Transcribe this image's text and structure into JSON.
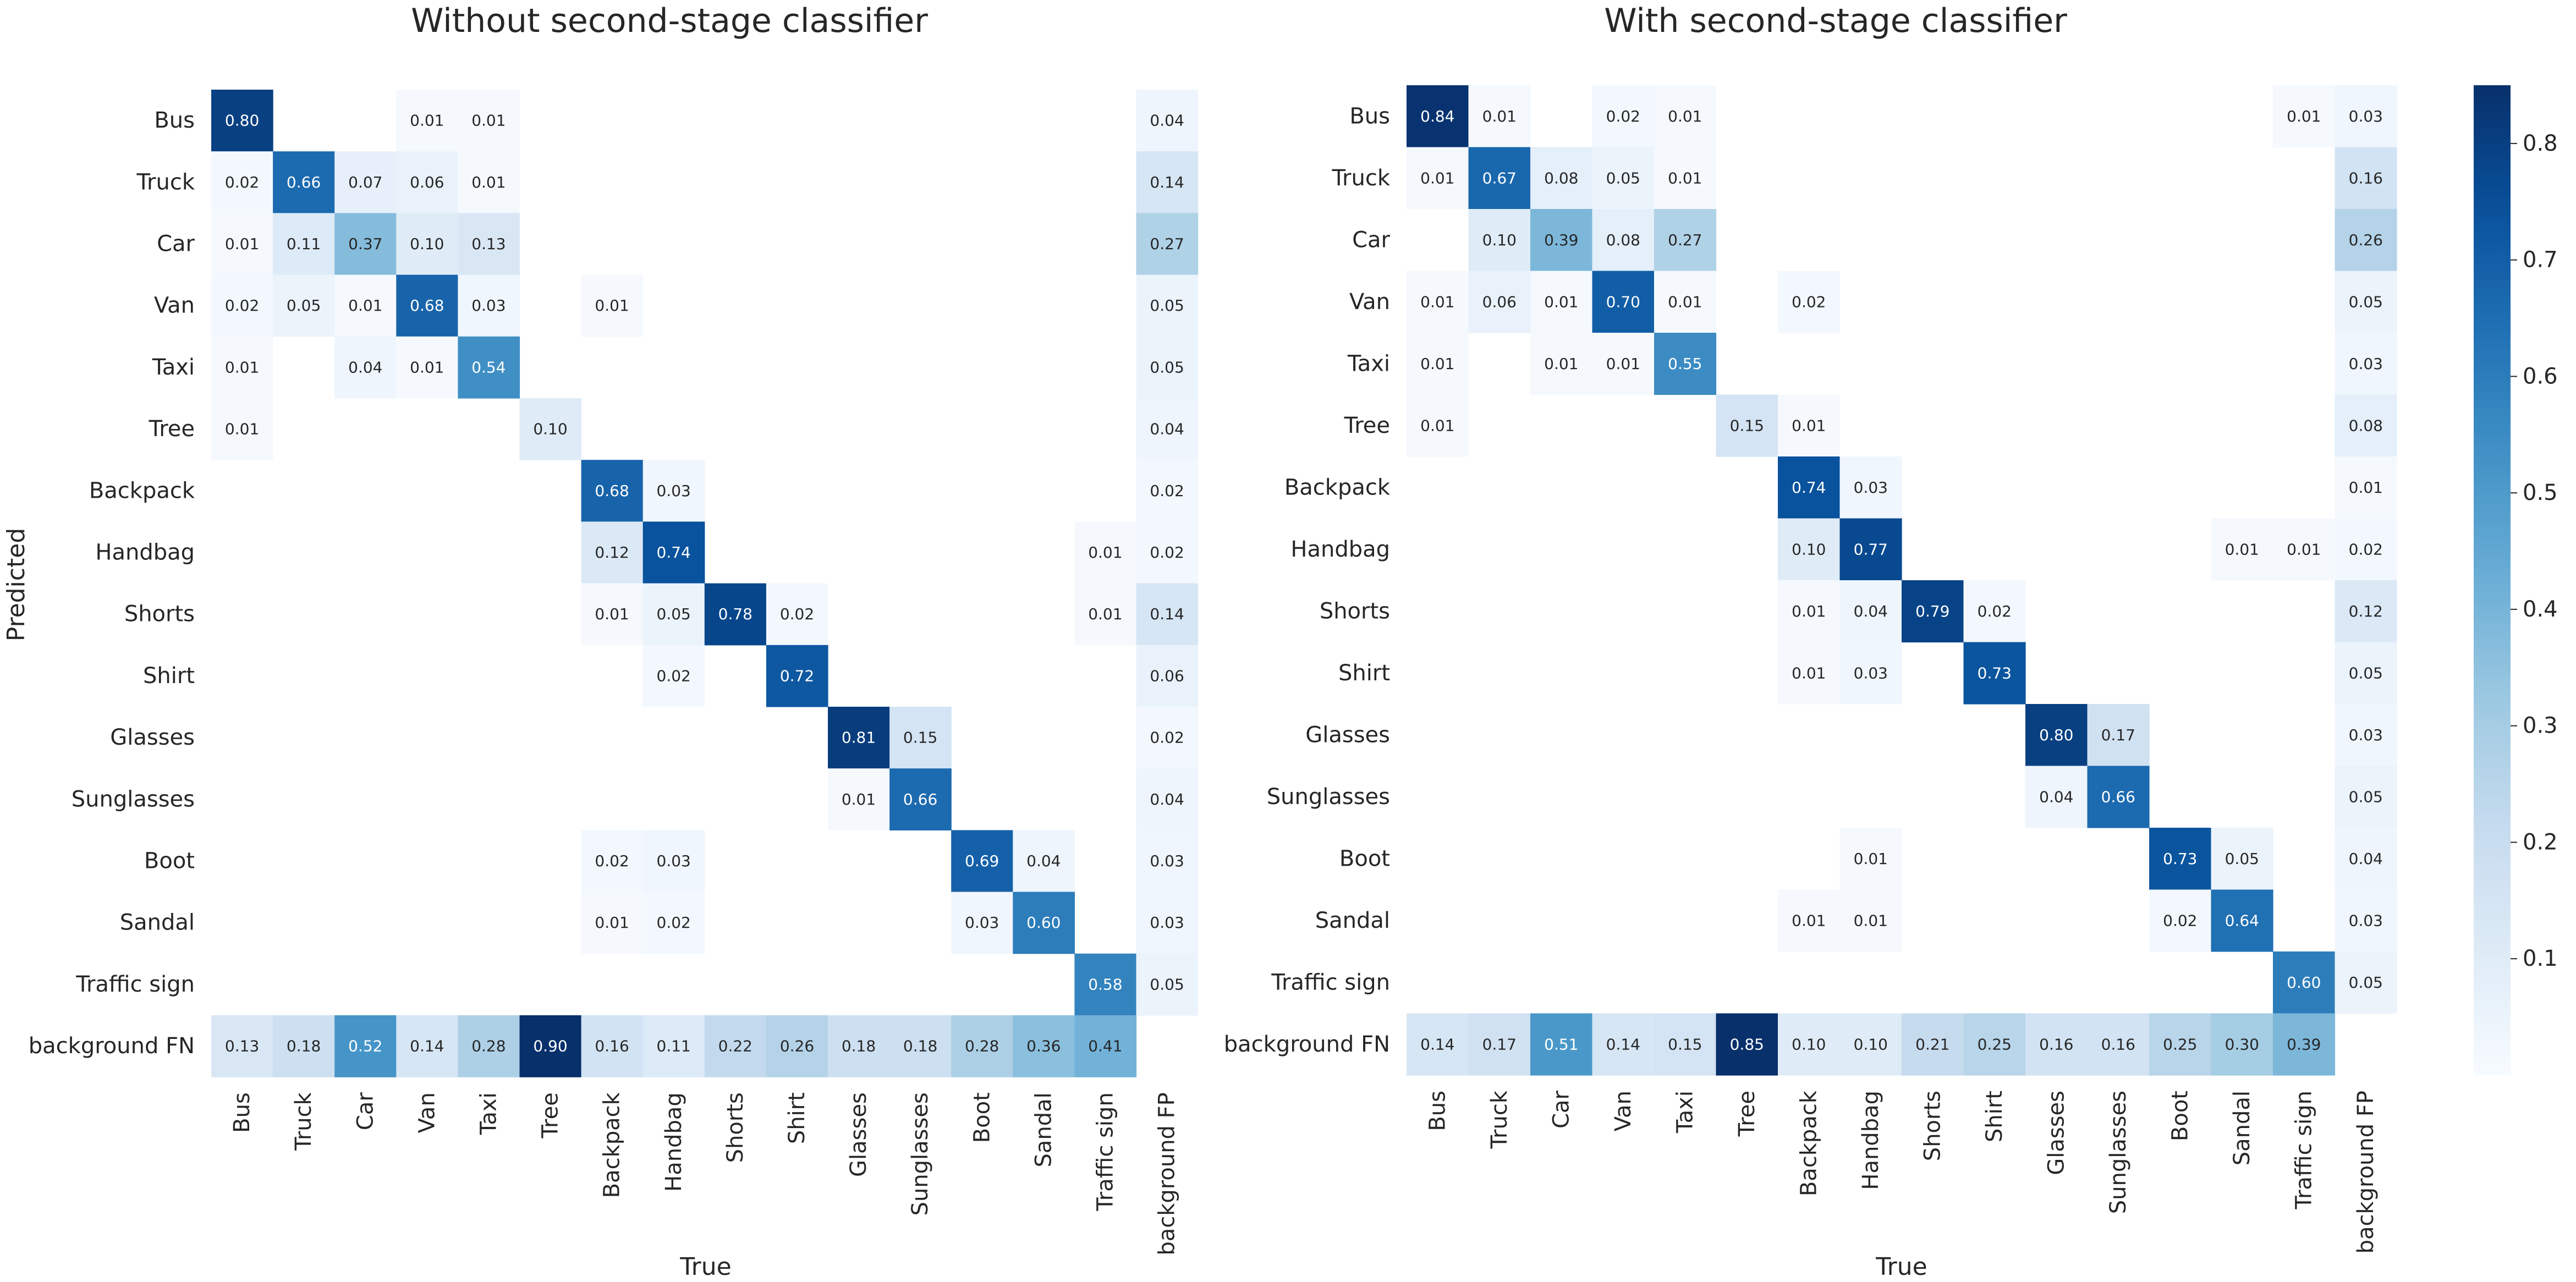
{
  "chart_data": [
    {
      "type": "heatmap",
      "title": "Without second-stage classifier",
      "xlabel": "True",
      "ylabel": "Predicted",
      "x_categories": [
        "Bus",
        "Truck",
        "Car",
        "Van",
        "Taxi",
        "Tree",
        "Backpack",
        "Handbag",
        "Shorts",
        "Shirt",
        "Glasses",
        "Sunglasses",
        "Boot",
        "Sandal",
        "Traffic sign",
        "background FP"
      ],
      "y_categories": [
        "Bus",
        "Truck",
        "Car",
        "Van",
        "Taxi",
        "Tree",
        "Backpack",
        "Handbag",
        "Shorts",
        "Shirt",
        "Glasses",
        "Sunglasses",
        "Boot",
        "Sandal",
        "Traffic sign",
        "background FN"
      ],
      "values": [
        [
          0.8,
          null,
          null,
          0.01,
          0.01,
          null,
          null,
          null,
          null,
          null,
          null,
          null,
          null,
          null,
          null,
          0.04
        ],
        [
          0.02,
          0.66,
          0.07,
          0.06,
          0.01,
          null,
          null,
          null,
          null,
          null,
          null,
          null,
          null,
          null,
          null,
          0.14
        ],
        [
          0.01,
          0.11,
          0.37,
          0.1,
          0.13,
          null,
          null,
          null,
          null,
          null,
          null,
          null,
          null,
          null,
          null,
          0.27
        ],
        [
          0.02,
          0.05,
          0.01,
          0.68,
          0.03,
          null,
          0.01,
          null,
          null,
          null,
          null,
          null,
          null,
          null,
          null,
          0.05
        ],
        [
          0.01,
          null,
          0.04,
          0.01,
          0.54,
          null,
          null,
          null,
          null,
          null,
          null,
          null,
          null,
          null,
          null,
          0.05
        ],
        [
          0.01,
          null,
          null,
          null,
          null,
          0.1,
          null,
          null,
          null,
          null,
          null,
          null,
          null,
          null,
          null,
          0.04
        ],
        [
          null,
          null,
          null,
          null,
          null,
          null,
          0.68,
          0.03,
          null,
          null,
          null,
          null,
          null,
          null,
          null,
          0.02
        ],
        [
          null,
          null,
          null,
          null,
          null,
          null,
          0.12,
          0.74,
          null,
          null,
          null,
          null,
          null,
          null,
          0.01,
          0.02
        ],
        [
          null,
          null,
          null,
          null,
          null,
          null,
          0.01,
          0.05,
          0.78,
          0.02,
          null,
          null,
          null,
          null,
          0.01,
          0.14
        ],
        [
          null,
          null,
          null,
          null,
          null,
          null,
          null,
          0.02,
          null,
          0.72,
          null,
          null,
          null,
          null,
          null,
          0.06
        ],
        [
          null,
          null,
          null,
          null,
          null,
          null,
          null,
          null,
          null,
          null,
          0.81,
          0.15,
          null,
          null,
          null,
          0.02
        ],
        [
          null,
          null,
          null,
          null,
          null,
          null,
          null,
          null,
          null,
          null,
          0.01,
          0.66,
          null,
          null,
          null,
          0.04
        ],
        [
          null,
          null,
          null,
          null,
          null,
          null,
          0.02,
          0.03,
          null,
          null,
          null,
          null,
          0.69,
          0.04,
          null,
          0.03
        ],
        [
          null,
          null,
          null,
          null,
          null,
          null,
          0.01,
          0.02,
          null,
          null,
          null,
          null,
          0.03,
          0.6,
          null,
          0.03
        ],
        [
          null,
          null,
          null,
          null,
          null,
          null,
          null,
          null,
          null,
          null,
          null,
          null,
          null,
          null,
          0.58,
          0.05
        ],
        [
          0.13,
          0.18,
          0.52,
          0.14,
          0.28,
          0.9,
          0.16,
          0.11,
          0.22,
          0.26,
          0.18,
          0.18,
          0.28,
          0.36,
          0.41,
          null
        ]
      ]
    },
    {
      "type": "heatmap",
      "title": "With second-stage classifier",
      "xlabel": "True",
      "ylabel": "",
      "x_categories": [
        "Bus",
        "Truck",
        "Car",
        "Van",
        "Taxi",
        "Tree",
        "Backpack",
        "Handbag",
        "Shorts",
        "Shirt",
        "Glasses",
        "Sunglasses",
        "Boot",
        "Sandal",
        "Traffic sign",
        "background FP"
      ],
      "y_categories": [
        "Bus",
        "Truck",
        "Car",
        "Van",
        "Taxi",
        "Tree",
        "Backpack",
        "Handbag",
        "Shorts",
        "Shirt",
        "Glasses",
        "Sunglasses",
        "Boot",
        "Sandal",
        "Traffic sign",
        "background FN"
      ],
      "values": [
        [
          0.84,
          0.01,
          null,
          0.02,
          0.01,
          null,
          null,
          null,
          null,
          null,
          null,
          null,
          null,
          null,
          0.01,
          0.03
        ],
        [
          0.01,
          0.67,
          0.08,
          0.05,
          0.01,
          null,
          null,
          null,
          null,
          null,
          null,
          null,
          null,
          null,
          null,
          0.16
        ],
        [
          null,
          0.1,
          0.39,
          0.08,
          0.27,
          null,
          null,
          null,
          null,
          null,
          null,
          null,
          null,
          null,
          null,
          0.26
        ],
        [
          0.01,
          0.06,
          0.01,
          0.7,
          0.01,
          null,
          0.02,
          null,
          null,
          null,
          null,
          null,
          null,
          null,
          null,
          0.05
        ],
        [
          0.01,
          null,
          0.01,
          0.01,
          0.55,
          null,
          null,
          null,
          null,
          null,
          null,
          null,
          null,
          null,
          null,
          0.03
        ],
        [
          0.01,
          null,
          null,
          null,
          null,
          0.15,
          0.01,
          null,
          null,
          null,
          null,
          null,
          null,
          null,
          null,
          0.08
        ],
        [
          null,
          null,
          null,
          null,
          null,
          null,
          0.74,
          0.03,
          null,
          null,
          null,
          null,
          null,
          null,
          null,
          0.01
        ],
        [
          null,
          null,
          null,
          null,
          null,
          null,
          0.1,
          0.77,
          null,
          null,
          null,
          null,
          null,
          0.01,
          0.01,
          0.02
        ],
        [
          null,
          null,
          null,
          null,
          null,
          null,
          0.01,
          0.04,
          0.79,
          0.02,
          null,
          null,
          null,
          null,
          null,
          0.12
        ],
        [
          null,
          null,
          null,
          null,
          null,
          null,
          0.01,
          0.03,
          null,
          0.73,
          null,
          null,
          null,
          null,
          null,
          0.05
        ],
        [
          null,
          null,
          null,
          null,
          null,
          null,
          null,
          null,
          null,
          null,
          0.8,
          0.17,
          null,
          null,
          null,
          0.03
        ],
        [
          null,
          null,
          null,
          null,
          null,
          null,
          null,
          null,
          null,
          null,
          0.04,
          0.66,
          null,
          null,
          null,
          0.05
        ],
        [
          null,
          null,
          null,
          null,
          null,
          null,
          null,
          0.01,
          null,
          null,
          null,
          null,
          0.73,
          0.05,
          null,
          0.04
        ],
        [
          null,
          null,
          null,
          null,
          null,
          null,
          0.01,
          0.01,
          null,
          null,
          null,
          null,
          0.02,
          0.64,
          null,
          0.03
        ],
        [
          null,
          null,
          null,
          null,
          null,
          null,
          null,
          null,
          null,
          null,
          null,
          null,
          null,
          null,
          0.6,
          0.05
        ],
        [
          0.14,
          0.17,
          0.51,
          0.14,
          0.15,
          0.85,
          0.1,
          0.1,
          0.21,
          0.25,
          0.16,
          0.16,
          0.25,
          0.3,
          0.39,
          null
        ]
      ]
    }
  ],
  "colorbar": {
    "colormap": "Blues",
    "vmin": 0,
    "vmax": 0.85,
    "ticks": [
      "0.1",
      "0.2",
      "0.3",
      "0.4",
      "0.5",
      "0.6",
      "0.7",
      "0.8"
    ]
  }
}
